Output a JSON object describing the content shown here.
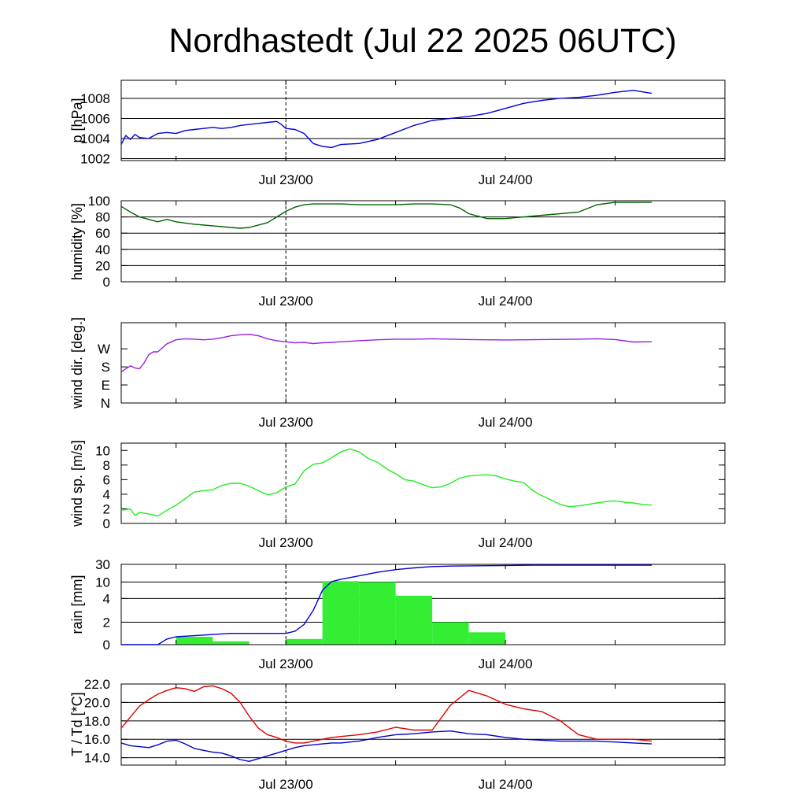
{
  "title": "Nordhastedt (Jul 22 2025 06UTC)",
  "x_axis": {
    "start": "Jul 22 2025 06UTC",
    "ticks": [
      "Jul 23/00",
      "Jul 24/00"
    ]
  },
  "colors": {
    "pressure": "#0000dd",
    "humidity": "#006400",
    "wind_dir": "#9a1fe0",
    "wind_speed": "#22ee22",
    "rain_line": "#0000dd",
    "rain_bars": "#33ee33",
    "temperature": "#e00000",
    "dewpoint": "#0000cc"
  },
  "chart_data": [
    {
      "type": "line",
      "ylabel": "p [hPa]",
      "yticks": [
        "1002",
        "1004",
        "1006",
        "1008"
      ],
      "ylim": [
        1001.8,
        1009.8
      ],
      "grid": "horizontal",
      "series": [
        {
          "x": [
            0,
            0.5,
            1,
            1.5,
            2,
            3,
            4,
            5,
            6,
            7,
            8,
            9,
            10,
            11,
            12,
            13,
            14,
            15,
            16,
            17,
            17.5,
            18,
            19,
            20,
            21,
            22,
            23,
            24,
            26,
            28,
            30,
            32,
            34,
            36,
            38,
            40,
            42,
            44,
            46,
            48,
            50,
            52,
            54,
            56,
            58
          ],
          "y": [
            1003.4,
            1004.3,
            1003.9,
            1004.4,
            1004.1,
            1004.0,
            1004.5,
            1004.6,
            1004.5,
            1004.8,
            1004.9,
            1005.0,
            1005.1,
            1005.0,
            1005.1,
            1005.3,
            1005.4,
            1005.5,
            1005.6,
            1005.7,
            1005.4,
            1005.0,
            1004.9,
            1004.5,
            1003.5,
            1003.2,
            1003.1,
            1003.4,
            1003.5,
            1003.9,
            1004.6,
            1005.3,
            1005.8,
            1006.0,
            1006.2,
            1006.5,
            1007.0,
            1007.5,
            1007.8,
            1008.0,
            1008.1,
            1008.3,
            1008.6,
            1008.8,
            1008.5
          ]
        }
      ]
    },
    {
      "type": "line",
      "ylabel": "humidity [%]",
      "yticks": [
        "0",
        "20",
        "40",
        "60",
        "80",
        "100"
      ],
      "ylim": [
        0,
        100
      ],
      "grid": "horizontal",
      "series": [
        {
          "x": [
            0,
            1,
            2,
            3,
            4,
            5,
            6,
            8,
            10,
            12,
            13,
            14,
            15,
            16,
            17,
            18,
            19,
            20,
            21,
            22,
            24,
            26,
            28,
            30,
            32,
            34,
            36,
            37,
            38,
            40,
            42,
            44,
            46,
            48,
            50,
            52,
            54,
            56,
            58
          ],
          "y": [
            93,
            86,
            80,
            77,
            74,
            77,
            74,
            71,
            69,
            67,
            66,
            67,
            70,
            73,
            80,
            87,
            92,
            95,
            96,
            96,
            96,
            95,
            95,
            95,
            96,
            96,
            95,
            91,
            84,
            78,
            78,
            80,
            82,
            84,
            86,
            95,
            98,
            98,
            98
          ]
        }
      ]
    },
    {
      "type": "line",
      "ylabel": "wind dir. [deg.]",
      "yticks": [
        "N",
        "E",
        "S",
        "W"
      ],
      "ylim": [
        0,
        400
      ],
      "grid": "none",
      "series": [
        {
          "x": [
            0,
            0.5,
            1,
            1.5,
            2,
            2.5,
            3,
            3.5,
            4,
            5,
            6,
            7,
            8,
            9,
            10,
            11,
            12,
            13,
            14,
            15,
            16,
            17,
            18,
            19,
            20,
            21,
            22,
            23,
            24,
            26,
            28,
            30,
            32,
            34,
            36,
            38,
            40,
            42,
            44,
            46,
            48,
            50,
            52,
            54,
            56,
            58
          ],
          "y": [
            155,
            170,
            185,
            175,
            170,
            200,
            240,
            255,
            255,
            295,
            315,
            320,
            318,
            315,
            318,
            325,
            335,
            340,
            342,
            335,
            320,
            310,
            305,
            300,
            302,
            296,
            300,
            302,
            305,
            310,
            315,
            318,
            318,
            320,
            318,
            316,
            315,
            314,
            315,
            316,
            317,
            318,
            320,
            316,
            304,
            305
          ]
        }
      ]
    },
    {
      "type": "line",
      "ylabel": "wind sp. [m/s]",
      "yticks": [
        "0",
        "2",
        "4",
        "6",
        "8",
        "10"
      ],
      "ylim": [
        0,
        11
      ],
      "grid": "none",
      "series": [
        {
          "x": [
            0,
            1,
            1.5,
            2,
            3,
            4,
            5,
            6,
            7,
            8,
            9,
            10,
            11,
            12,
            13,
            14,
            15,
            16,
            17,
            18,
            19,
            20,
            21,
            22,
            23,
            24,
            25,
            26,
            27,
            28,
            29,
            30,
            31,
            32,
            33,
            34,
            35,
            36,
            37,
            38,
            39,
            40,
            41,
            42,
            43,
            44,
            45,
            46,
            47,
            48,
            49,
            50,
            51,
            52,
            53,
            54,
            55,
            56,
            57,
            58
          ],
          "y": [
            1.8,
            2.0,
            1.1,
            1.5,
            1.3,
            1.0,
            1.8,
            2.5,
            3.4,
            4.3,
            4.5,
            4.6,
            5.2,
            5.5,
            5.5,
            5.1,
            4.5,
            3.9,
            4.2,
            5.0,
            5.4,
            7.2,
            8.1,
            8.3,
            9.0,
            9.8,
            10.2,
            9.8,
            8.9,
            8.4,
            7.5,
            6.8,
            6.0,
            5.8,
            5.3,
            4.9,
            5.0,
            5.5,
            6.2,
            6.5,
            6.6,
            6.7,
            6.5,
            6.1,
            5.8,
            5.6,
            4.5,
            3.8,
            3.2,
            2.6,
            2.3,
            2.4,
            2.6,
            2.8,
            3.0,
            3.1,
            2.9,
            2.8,
            2.6,
            2.5
          ]
        }
      ]
    },
    {
      "type": "bar",
      "ylabel": "rain [mm]",
      "yticks": [
        "0",
        "2",
        "4",
        "10",
        "30"
      ],
      "ylim": [
        0,
        30
      ],
      "grid": "horizontal",
      "scale": "non-linear",
      "bars": [
        {
          "from": 6,
          "to": 10,
          "value": 0.7
        },
        {
          "from": 10,
          "to": 14,
          "value": 0.3
        },
        {
          "from": 18,
          "to": 22,
          "value": 0.5
        },
        {
          "from": 22,
          "to": 26,
          "value": 11
        },
        {
          "from": 26,
          "to": 30,
          "value": 10
        },
        {
          "from": 30,
          "to": 34,
          "value": 5
        },
        {
          "from": 34,
          "to": 38,
          "value": 2
        },
        {
          "from": 38,
          "to": 42,
          "value": 1.1
        }
      ],
      "series": [
        {
          "x": [
            0,
            3,
            4,
            5,
            6,
            8,
            10,
            12,
            14,
            16,
            18,
            19,
            20,
            21,
            22,
            23,
            24,
            25,
            26,
            27,
            28,
            30,
            32,
            34,
            36,
            40,
            45,
            50,
            55,
            58
          ],
          "y": [
            0,
            0,
            0,
            0.5,
            0.7,
            0.8,
            0.9,
            1.0,
            1.0,
            1.0,
            1.0,
            1.2,
            1.8,
            3.0,
            7.0,
            10.5,
            13.0,
            15.0,
            17.0,
            19.0,
            21.0,
            24.0,
            26.0,
            27.5,
            28.0,
            28.5,
            29.0,
            29.0,
            29.0,
            29.0
          ]
        }
      ]
    },
    {
      "type": "line",
      "ylabel": "T / Td [*C]",
      "yticks": [
        "14.0",
        "16.0",
        "18.0",
        "20.0",
        "22.0"
      ],
      "ylim": [
        13.2,
        22.0
      ],
      "grid": "horizontal",
      "series": [
        {
          "x": [
            0,
            1,
            2,
            3,
            4,
            5,
            6,
            7,
            8,
            9,
            10,
            11,
            12,
            13,
            14,
            15,
            16,
            17,
            18,
            19,
            20,
            21,
            22,
            23,
            24,
            26,
            28,
            30,
            32,
            34,
            36,
            38,
            40,
            42,
            44,
            46,
            48,
            50,
            52,
            54,
            56,
            58
          ],
          "y": [
            17.2,
            18.4,
            19.6,
            20.3,
            20.9,
            21.3,
            21.6,
            21.5,
            21.2,
            21.7,
            21.8,
            21.5,
            21.0,
            20.0,
            18.5,
            17.2,
            16.5,
            16.2,
            15.8,
            15.6,
            15.6,
            15.8,
            16.0,
            16.2,
            16.3,
            16.5,
            16.8,
            17.3,
            17.0,
            17.0,
            19.7,
            21.3,
            20.7,
            19.8,
            19.3,
            19.0,
            18.0,
            16.5,
            16.0,
            16.0,
            16.0,
            15.8
          ]
        },
        {
          "x": [
            0,
            1,
            2,
            3,
            4,
            5,
            6,
            7,
            8,
            9,
            10,
            11,
            12,
            13,
            14,
            15,
            16,
            17,
            18,
            19,
            20,
            21,
            22,
            23,
            24,
            26,
            28,
            30,
            32,
            34,
            36,
            38,
            40,
            42,
            44,
            46,
            48,
            50,
            52,
            54,
            56,
            58
          ],
          "y": [
            15.6,
            15.3,
            15.2,
            15.1,
            15.4,
            15.8,
            15.9,
            15.5,
            15.0,
            14.8,
            14.6,
            14.5,
            14.2,
            13.8,
            13.6,
            13.9,
            14.2,
            14.5,
            14.8,
            15.1,
            15.3,
            15.4,
            15.5,
            15.6,
            15.6,
            15.8,
            16.2,
            16.5,
            16.6,
            16.8,
            16.9,
            16.6,
            16.5,
            16.2,
            16.0,
            15.9,
            15.8,
            15.8,
            15.8,
            15.7,
            15.6,
            15.5
          ]
        }
      ]
    }
  ]
}
